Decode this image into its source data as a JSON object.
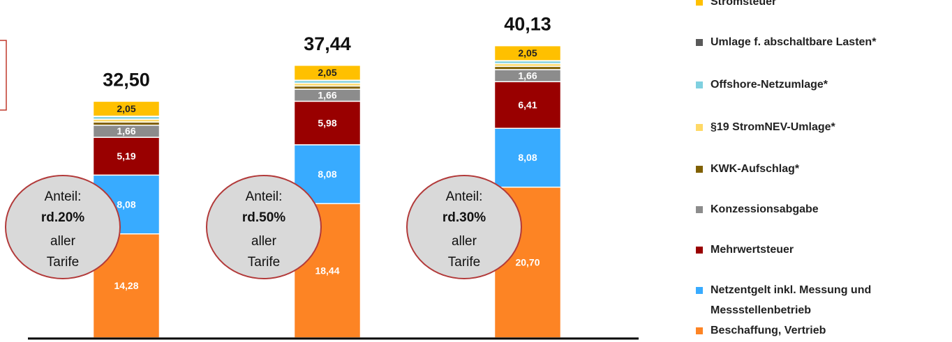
{
  "chart_data": {
    "type": "stacked_bar",
    "categories": [
      null,
      null,
      null
    ],
    "totals": [
      32.5,
      37.44,
      40.13
    ],
    "total_labels": [
      "32,50",
      "37,44",
      "40,13"
    ],
    "series": [
      {
        "name": "Beschaffung, Vertrieb",
        "color": "#fd8424",
        "values": [
          14.28,
          18.44,
          20.7
        ],
        "value_labels": [
          "14,28",
          "18,44",
          "20,70"
        ]
      },
      {
        "name": "Netzentgelt inkl. Messung und Messstellenbetrieb",
        "color": "#38abff",
        "values": [
          8.08,
          8.08,
          8.08
        ],
        "value_labels": [
          "8,08",
          "8,08",
          "8,08"
        ]
      },
      {
        "name": "Mehrwertsteuer",
        "color": "#990000",
        "values": [
          5.19,
          5.98,
          6.41
        ],
        "value_labels": [
          "5,19",
          "5,98",
          "6,41"
        ]
      },
      {
        "name": "Konzessionsabgabe",
        "color": "#8c8c8c",
        "values": [
          1.66,
          1.66,
          1.66
        ],
        "value_labels": [
          "1,66",
          "1,66",
          "1,66"
        ]
      },
      {
        "name": "KWK-Aufschlag*",
        "color": "#806000",
        "values": [
          0.44,
          0.44,
          0.44
        ]
      },
      {
        "name": "§19 StromNEV-Umlage*",
        "color": "#ffd966",
        "values": [
          0.38,
          0.38,
          0.38
        ]
      },
      {
        "name": "Offshore-Netzumlage*",
        "color": "#7fd0e0",
        "values": [
          0.37,
          0.37,
          0.37
        ]
      },
      {
        "name": "Umlage f. abschaltbare Lasten*",
        "color": "#595959",
        "values": [
          0.05,
          0.04,
          0.04
        ]
      },
      {
        "name": "Stromsteuer",
        "color": "#ffc000",
        "values": [
          2.05,
          2.05,
          2.05
        ],
        "value_labels": [
          "2,05",
          "2,05",
          "2,05"
        ]
      }
    ],
    "annotations": [
      [
        "Anteil:",
        "rd.20%",
        "aller",
        "Tarife"
      ],
      [
        "Anteil:",
        "rd.50%",
        "aller",
        "Tarife"
      ],
      [
        "Anteil:",
        "rd.30%",
        "aller",
        "Tarife"
      ]
    ]
  }
}
